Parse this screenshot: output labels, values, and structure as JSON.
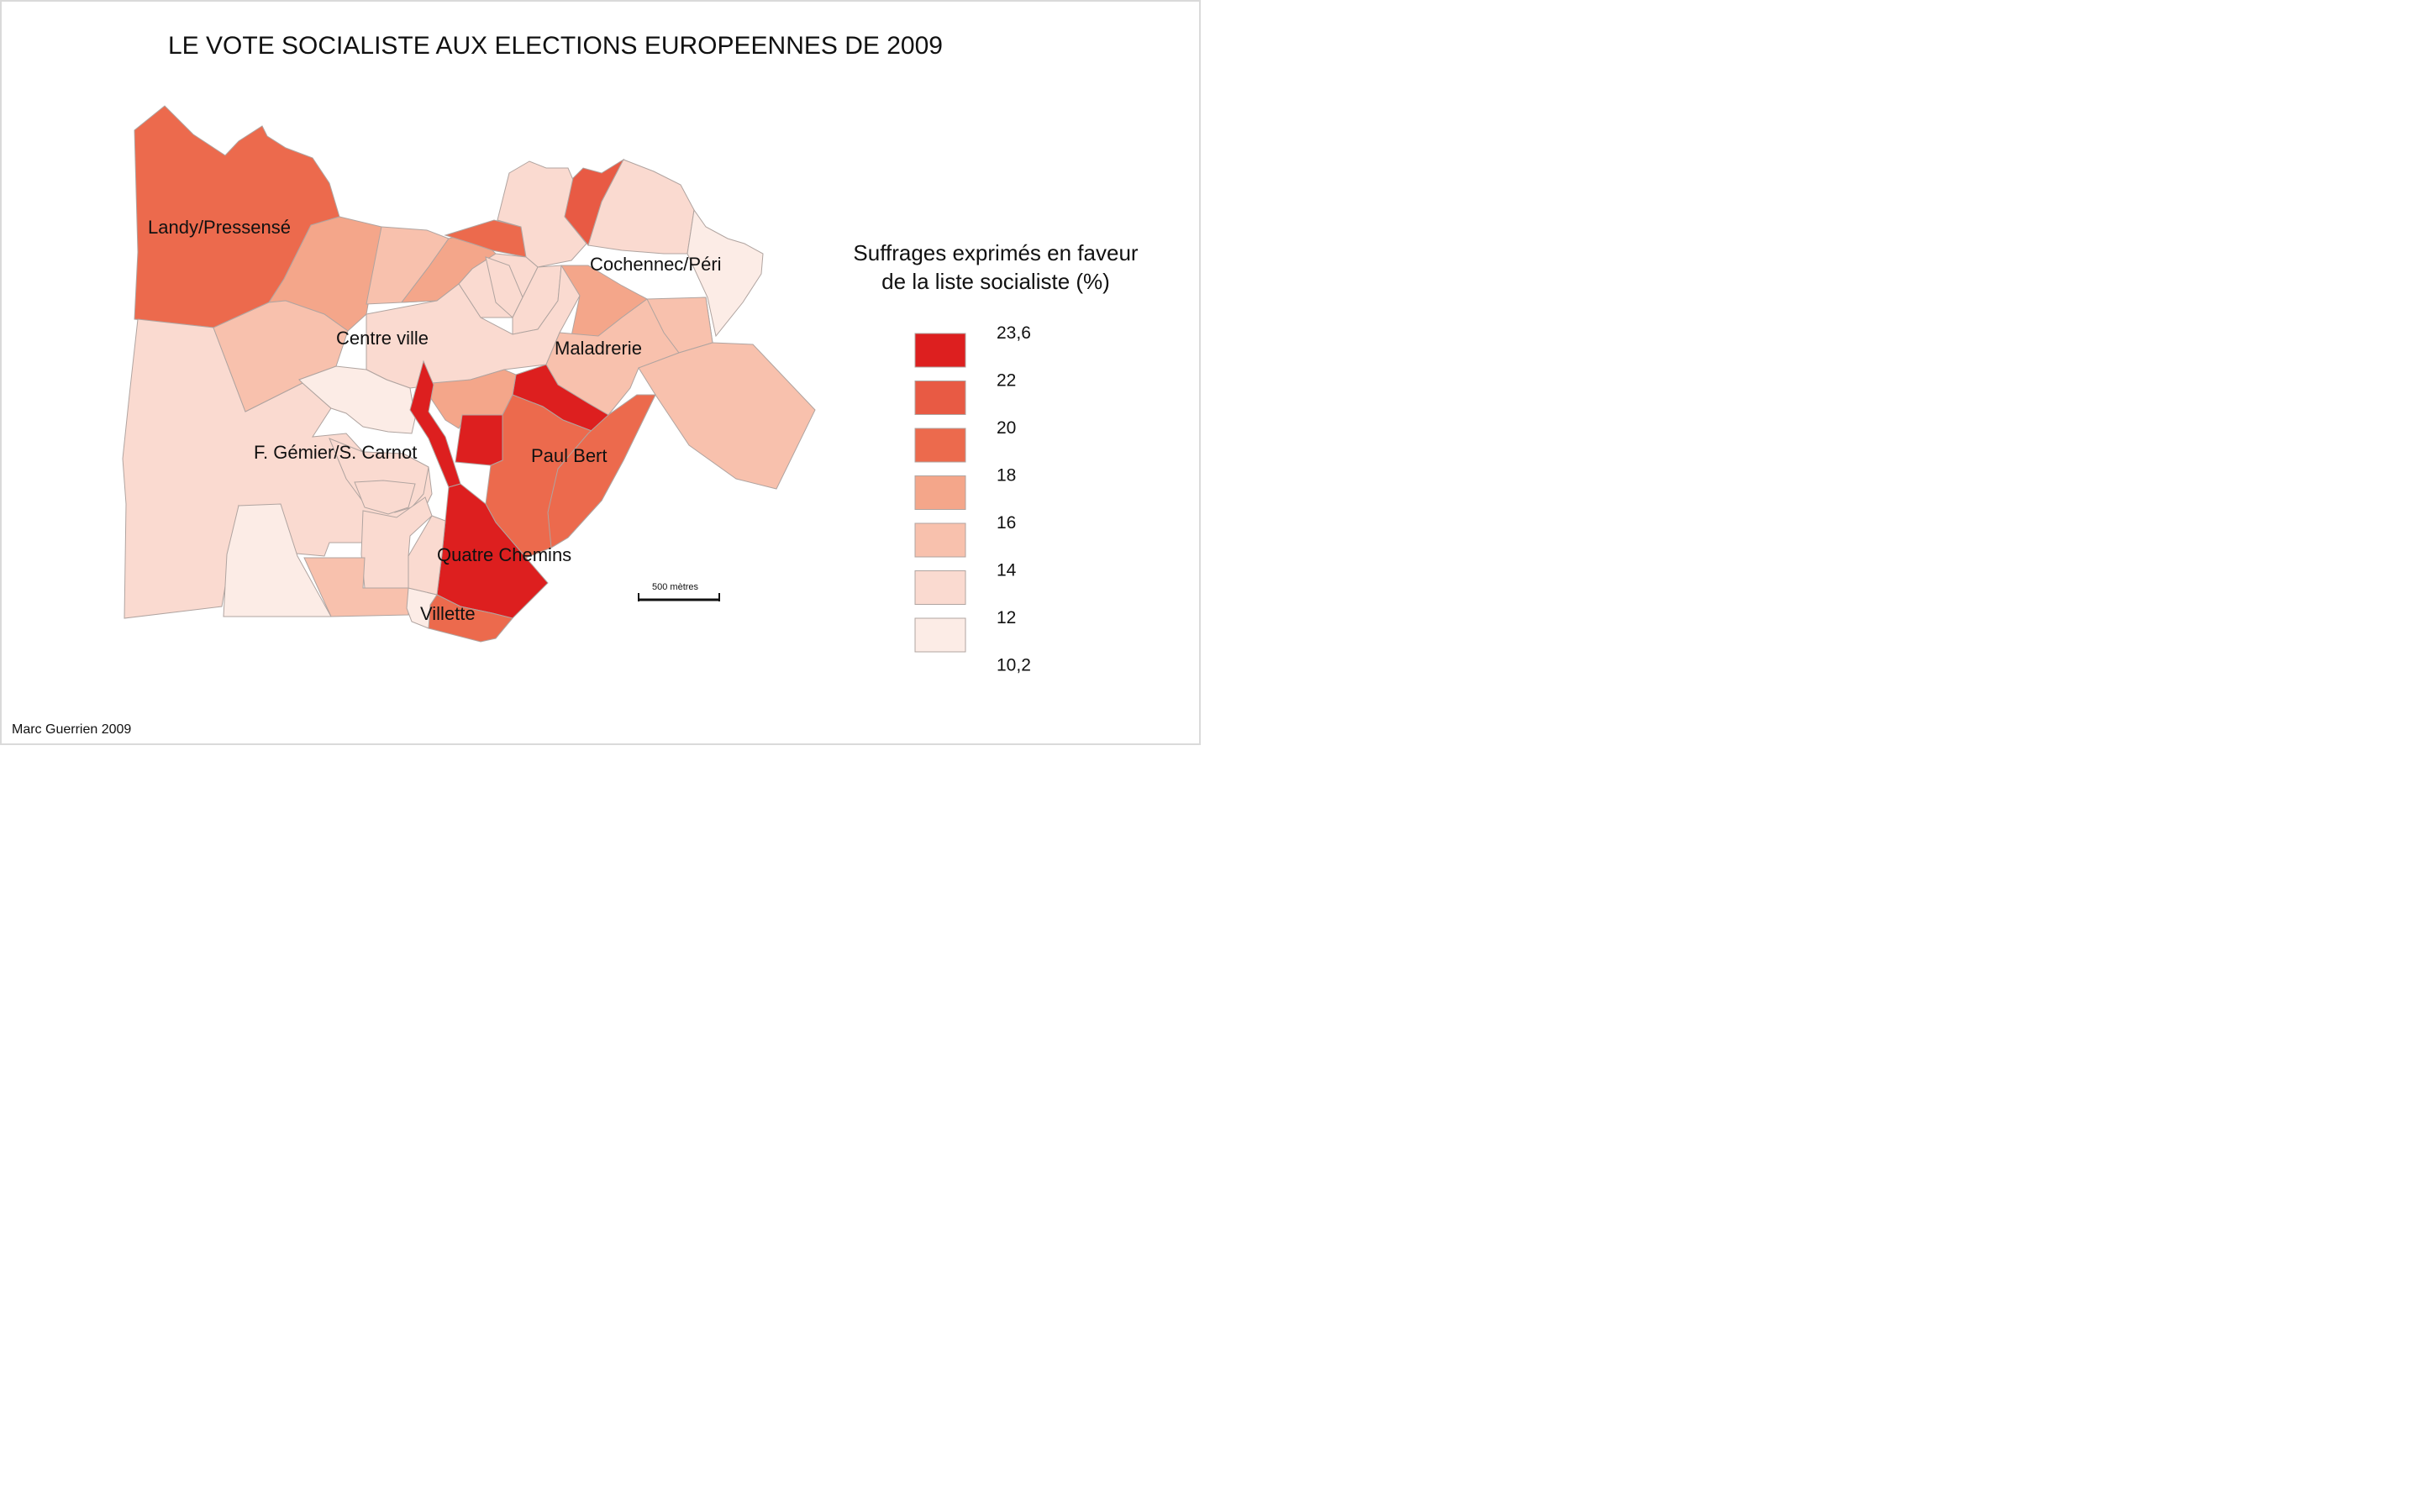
{
  "title": "LE VOTE SOCIALISTE AUX ELECTIONS EUROPEENNES DE 2009",
  "credit": "Marc Guerrien 2009",
  "legend": {
    "title_line1": "Suffrages exprimés en faveur",
    "title_line2": "de la liste socialiste (%)",
    "classes": [
      {
        "label": "23,6",
        "color": "#dd1f1f"
      },
      {
        "label": "22",
        "color": "#e85a44"
      },
      {
        "label": "20",
        "color": "#ec6a4d"
      },
      {
        "label": "18",
        "color": "#f4a68a"
      },
      {
        "label": "16",
        "color": "#f8c1ad"
      },
      {
        "label": "14",
        "color": "#fadad0"
      },
      {
        "label": "12",
        "color": "#fcece6"
      }
    ],
    "last_label": "10,2"
  },
  "scale": {
    "label": "500 mètres"
  },
  "places": {
    "landy": "Landy/Pressensé",
    "centre": "Centre ville",
    "cochennec": "Cochennec/Péri",
    "maladrerie": "Maladrerie",
    "gemier": "F. Gémier/S. Carnot",
    "paulbert": "Paul Bert",
    "quatre": "Quatre Chemins",
    "villette": "Villette"
  },
  "zones": [
    {
      "id": "landy",
      "cls": 2
    },
    {
      "id": "west-big",
      "cls": 5
    },
    {
      "id": "south-west-light",
      "cls": 6
    },
    {
      "id": "landy-south-east",
      "cls": 3
    },
    {
      "id": "centre-west-a",
      "cls": 4
    },
    {
      "id": "north-centre-a",
      "cls": 4
    },
    {
      "id": "north-centre-b",
      "cls": 5
    },
    {
      "id": "north-centre-c",
      "cls": 3
    },
    {
      "id": "north-strip",
      "cls": 2
    },
    {
      "id": "north-mid",
      "cls": 5
    },
    {
      "id": "north-red",
      "cls": 1
    },
    {
      "id": "north-east",
      "cls": 5
    },
    {
      "id": "cochennec-east",
      "cls": 6
    },
    {
      "id": "centre-small-a",
      "cls": 5
    },
    {
      "id": "centre-small-b",
      "cls": 5
    },
    {
      "id": "centre-small-c",
      "cls": 5
    },
    {
      "id": "centre-ville",
      "cls": 5
    },
    {
      "id": "centre-white",
      "cls": 6
    },
    {
      "id": "maladrerie-north",
      "cls": 3
    },
    {
      "id": "maladrerie",
      "cls": 4
    },
    {
      "id": "maladrerie-east",
      "cls": 4
    },
    {
      "id": "east-big",
      "cls": 4
    },
    {
      "id": "paulbert-north",
      "cls": 0
    },
    {
      "id": "paulbert-west",
      "cls": 3
    },
    {
      "id": "centre-red-strip",
      "cls": 0
    },
    {
      "id": "red-small",
      "cls": 0
    },
    {
      "id": "paulbert",
      "cls": 2
    },
    {
      "id": "paulbert-east",
      "cls": 2
    },
    {
      "id": "gemier-inner",
      "cls": 5
    },
    {
      "id": "gemier-small",
      "cls": 5
    },
    {
      "id": "south-mid-a",
      "cls": 5
    },
    {
      "id": "south-mid-b",
      "cls": 4
    },
    {
      "id": "quatre-chemins",
      "cls": 0
    },
    {
      "id": "villette-red",
      "cls": 2
    },
    {
      "id": "villette",
      "cls": 6
    },
    {
      "id": "south-strip",
      "cls": 5
    }
  ]
}
